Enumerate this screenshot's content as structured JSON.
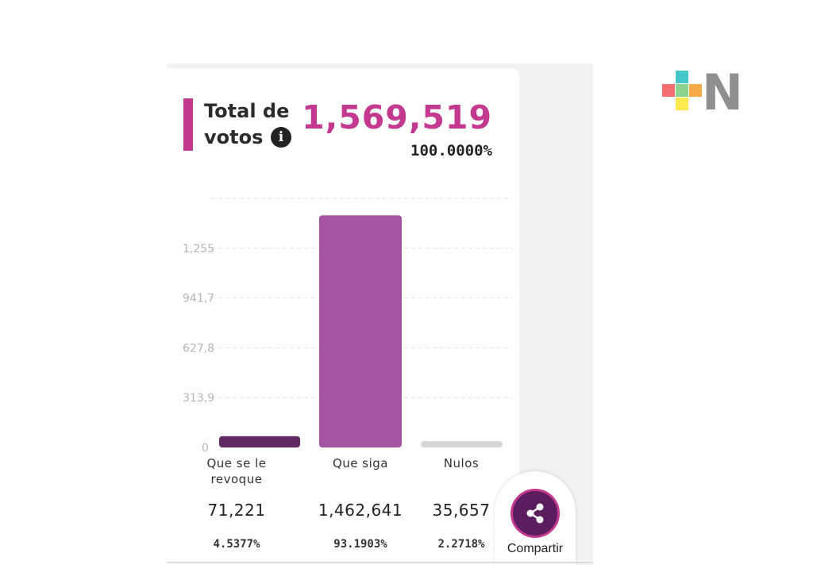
{
  "header": {
    "title_line1": "Total de",
    "title_line2": "votos",
    "info_icon": "i",
    "total_value": "1,569,519",
    "total_percent": "100.0000%"
  },
  "chart_data": {
    "type": "bar",
    "categories": [
      "Que se le revoque",
      "Que siga",
      "Nulos"
    ],
    "values": [
      71221,
      1462641,
      35657
    ],
    "display_values": [
      "71,221",
      "1,462,641",
      "35,657"
    ],
    "percentages": [
      "4.5377%",
      "93.1903%",
      "2.2718%"
    ],
    "colors": [
      "#5f2a62",
      "#a355a1",
      "#d6d6d6"
    ],
    "yticks": [
      0,
      313904,
      627808,
      941712,
      1255616,
      1569519
    ],
    "ytick_labels": [
      "0",
      "313,9",
      "627,8",
      "941,7",
      "1,255",
      ""
    ],
    "ylim": [
      0,
      1569519
    ],
    "grid": true,
    "label_lines": [
      [
        "Que se le",
        "revoque"
      ],
      [
        "Que siga"
      ],
      [
        "Nulos"
      ]
    ]
  },
  "share": {
    "label": "Compartir",
    "icon": "share-icon"
  },
  "logo": {
    "letter": "N",
    "cross_colors": [
      "#f36f73",
      "#45c6c6",
      "#f7aa4a",
      "#ffe94d",
      "#8ed28f"
    ]
  }
}
